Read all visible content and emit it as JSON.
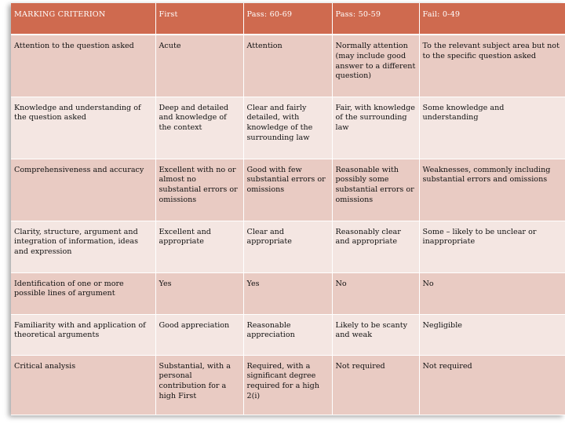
{
  "columns": [
    "MARKING CRITERION",
    "First",
    "Pass: 60-69",
    "Pass: 50-59",
    "Fail: 0-49"
  ],
  "rows": [
    {
      "criterion": "Attention to the question asked",
      "cells": [
        "Acute",
        "Attention",
        "Normally attention (may include good answer to a different question)",
        "To the relevant subject area but not to the specific question asked"
      ]
    },
    {
      "criterion": "Knowledge and understanding of the question asked",
      "cells": [
        "Deep and detailed and knowledge of the context",
        "Clear and fairly detailed, with knowledge of the surrounding law",
        "Fair, with knowledge of the surrounding law",
        "Some knowledge and understanding"
      ]
    },
    {
      "criterion": "Comprehensiveness and accuracy",
      "cells": [
        "Excellent with no or almost no substantial errors or omissions",
        "Good with few substantial errors or omissions",
        "Reasonable with possibly some substantial errors or omissions",
        "Weaknesses, commonly including substantial errors and omissions"
      ]
    },
    {
      "criterion": "Clarity, structure, argument and integration of information, ideas and expression",
      "cells": [
        "Excellent and appropriate",
        "Clear and appropriate",
        "Reasonably clear and appropriate",
        "Some – likely to be unclear or inappropriate"
      ]
    },
    {
      "criterion": "Identification of one or more possible lines of argument",
      "cells": [
        "Yes",
        "Yes",
        "No",
        "No"
      ]
    },
    {
      "criterion": "Familiarity with and application of theoretical arguments",
      "cells": [
        "Good appreciation",
        "Reasonable appreciation",
        "Likely to be scanty and weak",
        "Negligible"
      ]
    },
    {
      "criterion": "Critical analysis",
      "cells": [
        "Substantial, with a personal contribution for a high First",
        "Required, with a significant degree required for a high 2(i)",
        "Not required",
        "Not required"
      ]
    }
  ]
}
